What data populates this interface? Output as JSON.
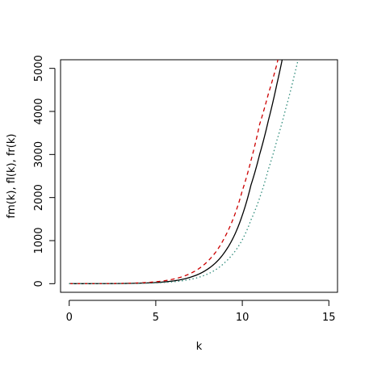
{
  "chart_data": {
    "type": "line",
    "title": "",
    "xlabel": "k",
    "ylabel": "fm(k), fl(k), fr(k)",
    "xlim": [
      -0.5,
      15.5
    ],
    "ylim": [
      -200,
      5200
    ],
    "xticks": [
      0,
      5,
      10,
      15
    ],
    "yticks": [
      0,
      1000,
      2000,
      3000,
      4000,
      5000
    ],
    "xtick_labels": [
      "0",
      "5",
      "10",
      "15"
    ],
    "ytick_labels": [
      "0",
      "1000",
      "2000",
      "3000",
      "4000",
      "5000"
    ],
    "grid": false,
    "legend": "none",
    "series": [
      {
        "color": "#000000",
        "dash": "solid",
        "x": [
          0,
          1,
          2,
          3,
          4,
          5,
          6,
          7,
          8,
          9,
          10,
          10.5,
          11,
          11.5,
          12,
          12.5,
          13
        ],
        "values": [
          0,
          0.4,
          1.5,
          4.2,
          11,
          27,
          63,
          150,
          338,
          742,
          1590,
          2290,
          3000,
          3780,
          4640,
          5600,
          6700
        ]
      },
      {
        "color": "#cc0000",
        "dash": "dashed",
        "x": [
          0,
          1,
          2,
          3,
          4,
          5,
          6,
          7,
          8,
          9,
          10,
          10.5,
          11,
          11.5,
          12,
          12.5
        ],
        "values": [
          0,
          0.6,
          2.3,
          6.8,
          18,
          44,
          104,
          238,
          520,
          1090,
          2160,
          2860,
          3700,
          4400,
          5100,
          6100
        ]
      },
      {
        "color": "#2e8b7a",
        "dash": "dotted",
        "x": [
          0,
          1,
          2,
          3,
          4,
          5,
          6,
          7,
          8,
          9,
          10,
          10.5,
          11,
          11.5,
          12,
          12.5,
          13,
          13.5
        ],
        "values": [
          0,
          0.3,
          1.0,
          2.8,
          7.3,
          18,
          43,
          100,
          225,
          495,
          1020,
          1480,
          1990,
          2650,
          3330,
          4050,
          4830,
          5700
        ]
      }
    ]
  }
}
